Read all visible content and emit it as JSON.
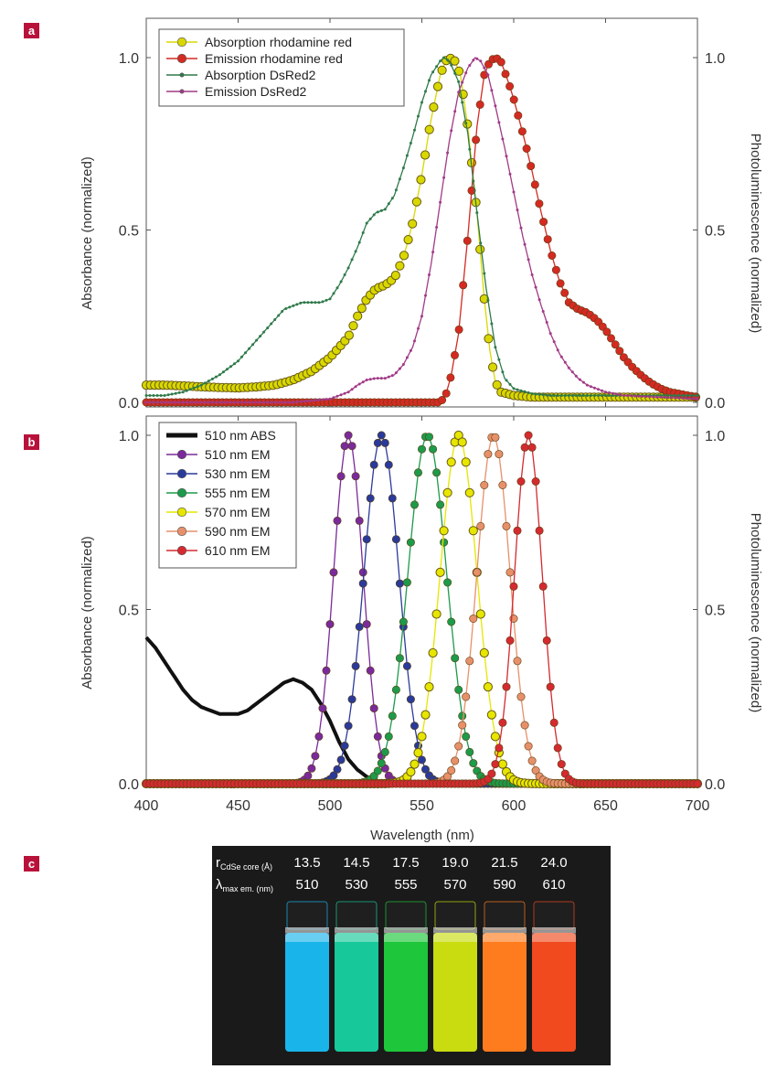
{
  "colors": {
    "panel_badge": "#b8123a",
    "rhodamine_abs": "#d8d800",
    "rhodamine_em": "#d42a22",
    "dsred_abs": "#2f7a4a",
    "dsred_em": "#a23a86",
    "abs_510": "#111111",
    "em_510": "#7a2a9a",
    "em_530": "#2a3a9a",
    "em_555": "#1d9a4a",
    "em_570": "#e6e600",
    "em_590": "#e8906a",
    "em_610": "#d42a30",
    "photo_bg": "#1a1a1a"
  },
  "panels": {
    "a": "a",
    "b": "b",
    "c": "c"
  },
  "chart_data": [
    {
      "panel": "a",
      "type": "line",
      "ylabel_left": "Absorbance (normalized)",
      "ylabel_right": "Photoluminescence (normalized)",
      "xlim": [
        400,
        700
      ],
      "ylim": [
        0,
        1.05
      ],
      "yticks": [
        "0.0",
        "0.5",
        "1.0"
      ],
      "legend_position": "top-left",
      "grid": false,
      "series": [
        {
          "name": "Absorption rhodamine red",
          "marker": "circle-open",
          "points": [
            [
              400,
              0.05
            ],
            [
              410,
              0.05
            ],
            [
              420,
              0.048
            ],
            [
              430,
              0.045
            ],
            [
              440,
              0.043
            ],
            [
              450,
              0.042
            ],
            [
              460,
              0.045
            ],
            [
              470,
              0.05
            ],
            [
              480,
              0.065
            ],
            [
              490,
              0.09
            ],
            [
              500,
              0.13
            ],
            [
              510,
              0.19
            ],
            [
              515,
              0.25
            ],
            [
              520,
              0.3
            ],
            [
              525,
              0.33
            ],
            [
              530,
              0.34
            ],
            [
              535,
              0.36
            ],
            [
              540,
              0.42
            ],
            [
              545,
              0.52
            ],
            [
              550,
              0.66
            ],
            [
              555,
              0.82
            ],
            [
              560,
              0.95
            ],
            [
              563,
              0.99
            ],
            [
              565,
              1.0
            ],
            [
              568,
              0.99
            ],
            [
              571,
              0.95
            ],
            [
              575,
              0.8
            ],
            [
              580,
              0.55
            ],
            [
              584,
              0.3
            ],
            [
              587,
              0.15
            ],
            [
              590,
              0.06
            ],
            [
              593,
              0.03
            ],
            [
              600,
              0.02
            ],
            [
              610,
              0.015
            ],
            [
              620,
              0.015
            ],
            [
              640,
              0.015
            ],
            [
              660,
              0.015
            ],
            [
              680,
              0.015
            ],
            [
              700,
              0.015
            ]
          ]
        },
        {
          "name": "Emission rhodamine red",
          "marker": "circle-filled",
          "points": [
            [
              400,
              0.0
            ],
            [
              450,
              0.0
            ],
            [
              500,
              0.0
            ],
            [
              550,
              0.0
            ],
            [
              560,
              0.0
            ],
            [
              563,
              0.02
            ],
            [
              566,
              0.08
            ],
            [
              570,
              0.2
            ],
            [
              575,
              0.48
            ],
            [
              580,
              0.8
            ],
            [
              584,
              0.95
            ],
            [
              587,
              0.99
            ],
            [
              590,
              1.0
            ],
            [
              593,
              0.99
            ],
            [
              597,
              0.93
            ],
            [
              600,
              0.88
            ],
            [
              605,
              0.78
            ],
            [
              610,
              0.67
            ],
            [
              615,
              0.55
            ],
            [
              620,
              0.44
            ],
            [
              625,
              0.35
            ],
            [
              630,
              0.29
            ],
            [
              635,
              0.27
            ],
            [
              640,
              0.26
            ],
            [
              645,
              0.24
            ],
            [
              650,
              0.21
            ],
            [
              655,
              0.17
            ],
            [
              660,
              0.13
            ],
            [
              665,
              0.1
            ],
            [
              670,
              0.075
            ],
            [
              675,
              0.055
            ],
            [
              680,
              0.04
            ],
            [
              685,
              0.03
            ],
            [
              690,
              0.025
            ],
            [
              695,
              0.02
            ],
            [
              700,
              0.015
            ]
          ]
        },
        {
          "name": "Absorption DsRed2",
          "marker": "small-dot",
          "points": [
            [
              400,
              0.02
            ],
            [
              410,
              0.02
            ],
            [
              420,
              0.03
            ],
            [
              430,
              0.05
            ],
            [
              440,
              0.08
            ],
            [
              450,
              0.12
            ],
            [
              460,
              0.18
            ],
            [
              470,
              0.24
            ],
            [
              475,
              0.27
            ],
            [
              480,
              0.28
            ],
            [
              485,
              0.29
            ],
            [
              490,
              0.29
            ],
            [
              495,
              0.29
            ],
            [
              500,
              0.3
            ],
            [
              505,
              0.34
            ],
            [
              510,
              0.39
            ],
            [
              515,
              0.45
            ],
            [
              520,
              0.52
            ],
            [
              525,
              0.55
            ],
            [
              530,
              0.56
            ],
            [
              535,
              0.6
            ],
            [
              540,
              0.68
            ],
            [
              545,
              0.77
            ],
            [
              550,
              0.87
            ],
            [
              555,
              0.95
            ],
            [
              560,
              0.99
            ],
            [
              562,
              1.0
            ],
            [
              565,
              0.99
            ],
            [
              570,
              0.93
            ],
            [
              575,
              0.78
            ],
            [
              580,
              0.55
            ],
            [
              585,
              0.33
            ],
            [
              590,
              0.16
            ],
            [
              595,
              0.07
            ],
            [
              600,
              0.04
            ],
            [
              610,
              0.025
            ],
            [
              620,
              0.02
            ],
            [
              640,
              0.02
            ],
            [
              660,
              0.02
            ],
            [
              680,
              0.02
            ],
            [
              700,
              0.02
            ]
          ]
        },
        {
          "name": "Emission DsRed2",
          "marker": "small-dot",
          "points": [
            [
              400,
              0.0
            ],
            [
              450,
              0.0
            ],
            [
              480,
              0.0
            ],
            [
              500,
              0.01
            ],
            [
              510,
              0.03
            ],
            [
              515,
              0.05
            ],
            [
              520,
              0.065
            ],
            [
              525,
              0.07
            ],
            [
              530,
              0.07
            ],
            [
              535,
              0.08
            ],
            [
              540,
              0.11
            ],
            [
              545,
              0.16
            ],
            [
              550,
              0.25
            ],
            [
              555,
              0.4
            ],
            [
              560,
              0.58
            ],
            [
              565,
              0.76
            ],
            [
              570,
              0.9
            ],
            [
              575,
              0.97
            ],
            [
              579,
              1.0
            ],
            [
              582,
              0.99
            ],
            [
              586,
              0.95
            ],
            [
              590,
              0.86
            ],
            [
              595,
              0.74
            ],
            [
              600,
              0.61
            ],
            [
              605,
              0.48
            ],
            [
              610,
              0.37
            ],
            [
              615,
              0.28
            ],
            [
              620,
              0.2
            ],
            [
              625,
              0.14
            ],
            [
              630,
              0.1
            ],
            [
              635,
              0.07
            ],
            [
              640,
              0.05
            ],
            [
              650,
              0.03
            ],
            [
              660,
              0.02
            ],
            [
              680,
              0.015
            ],
            [
              700,
              0.01
            ]
          ]
        }
      ]
    },
    {
      "panel": "b",
      "type": "line",
      "xlabel": "Wavelength (nm)",
      "ylabel_left": "Absorbance (normalized)",
      "ylabel_right": "Photoluminescence (normalized)",
      "xlim": [
        400,
        700
      ],
      "ylim": [
        0,
        1.05
      ],
      "xticks": [
        "400",
        "450",
        "500",
        "550",
        "600",
        "650",
        "700"
      ],
      "yticks": [
        "0.0",
        "0.5",
        "1.0"
      ],
      "legend_position": "top-left",
      "grid": false,
      "series": [
        {
          "name": "510 nm ABS",
          "marker": "line",
          "points": [
            [
              400,
              0.42
            ],
            [
              405,
              0.39
            ],
            [
              410,
              0.35
            ],
            [
              415,
              0.31
            ],
            [
              420,
              0.27
            ],
            [
              425,
              0.24
            ],
            [
              430,
              0.22
            ],
            [
              435,
              0.21
            ],
            [
              440,
              0.2
            ],
            [
              445,
              0.2
            ],
            [
              450,
              0.2
            ],
            [
              455,
              0.21
            ],
            [
              460,
              0.23
            ],
            [
              465,
              0.25
            ],
            [
              470,
              0.27
            ],
            [
              475,
              0.29
            ],
            [
              480,
              0.3
            ],
            [
              485,
              0.29
            ],
            [
              490,
              0.27
            ],
            [
              495,
              0.23
            ],
            [
              500,
              0.18
            ],
            [
              505,
              0.12
            ],
            [
              510,
              0.07
            ],
            [
              515,
              0.04
            ],
            [
              520,
              0.02
            ],
            [
              525,
              0.01
            ],
            [
              530,
              0.0
            ]
          ]
        },
        {
          "name": "510 nm EM",
          "marker": "circle-filled",
          "peak": 510,
          "width": 8
        },
        {
          "name": "530 nm EM",
          "marker": "circle-filled",
          "peak": 528,
          "width": 9.5
        },
        {
          "name": "555 nm EM",
          "marker": "circle-filled",
          "peak": 553,
          "width": 10.5
        },
        {
          "name": "570 nm EM",
          "marker": "circle-open",
          "peak": 570,
          "width": 10
        },
        {
          "name": "590 nm EM",
          "marker": "circle-filled",
          "peak": 589,
          "width": 9
        },
        {
          "name": "610 nm EM",
          "marker": "circle-filled",
          "peak": 608,
          "width": 7.5
        }
      ]
    },
    {
      "panel": "c",
      "type": "table",
      "row_labels": [
        "r_CdSe core (Å)",
        "λ_max em. (nm)"
      ],
      "columns": [
        {
          "radius": "13.5",
          "lambda": "510",
          "color": "#19b4ea"
        },
        {
          "radius": "14.5",
          "lambda": "530",
          "color": "#17c89a"
        },
        {
          "radius": "17.5",
          "lambda": "555",
          "color": "#1dc63a"
        },
        {
          "radius": "19.0",
          "lambda": "570",
          "color": "#c8dc10"
        },
        {
          "radius": "21.5",
          "lambda": "590",
          "color": "#ff7c1e"
        },
        {
          "radius": "24.0",
          "lambda": "610",
          "color": "#f04a1e"
        }
      ]
    }
  ]
}
